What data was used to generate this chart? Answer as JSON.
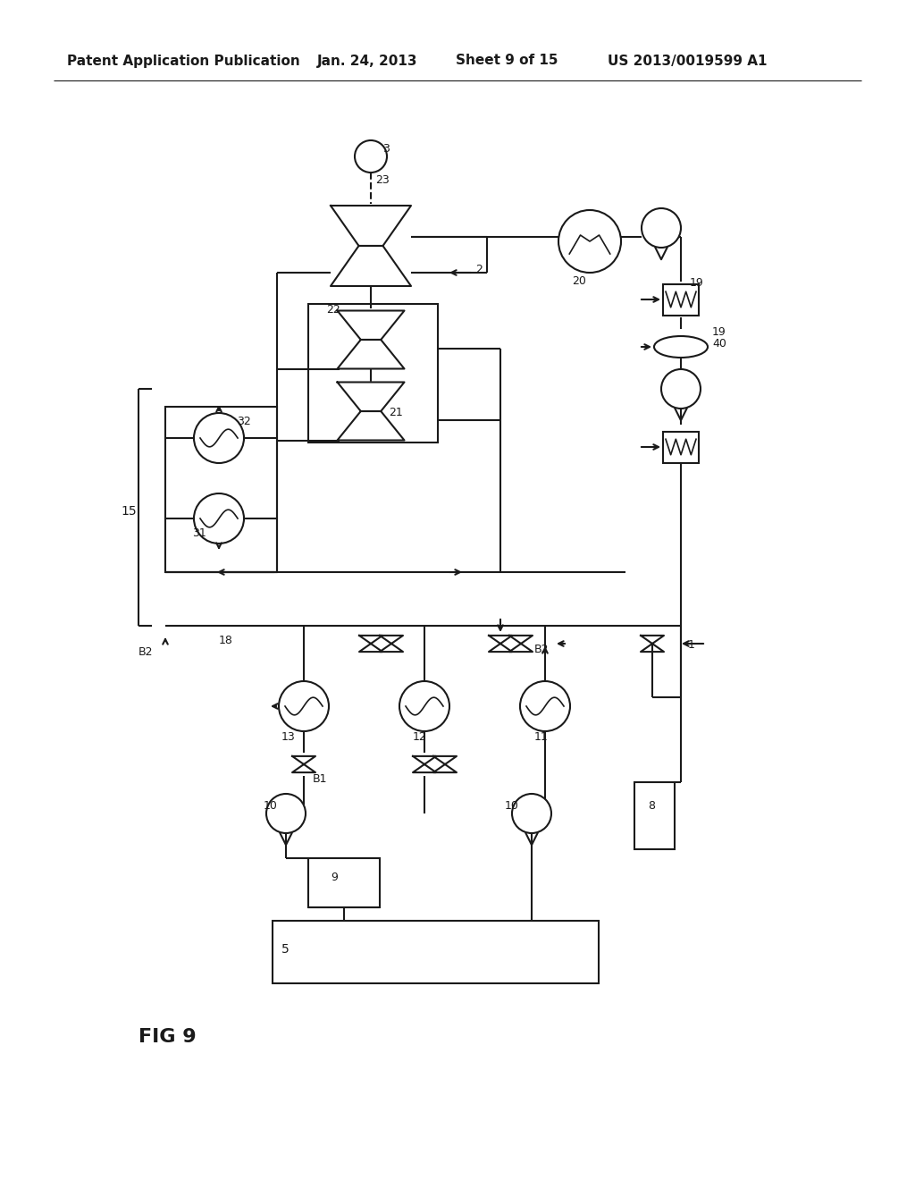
{
  "bg_color": "#ffffff",
  "lc": "#1a1a1a",
  "lw": 1.5,
  "header_text": "Patent Application Publication",
  "header_date": "Jan. 24, 2013",
  "header_sheet": "Sheet 9 of 15",
  "header_patent": "US 2013/0019599 A1",
  "fig_label": "FIG 9"
}
